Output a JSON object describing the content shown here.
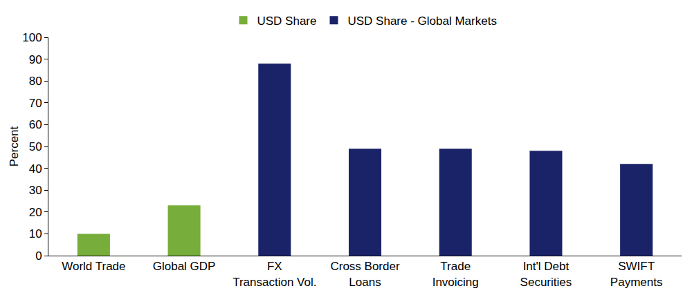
{
  "chart_data": {
    "type": "bar",
    "categories": [
      "World Trade",
      "Global GDP",
      "FX\nTransaction Vol.",
      "Cross Border\nLoans",
      "Trade\nInvoicing",
      "Int'l Debt\nSecurities",
      "SWIFT\nPayments"
    ],
    "series": [
      {
        "name": "USD Share",
        "color": "#77ad3a",
        "values": [
          10,
          23,
          null,
          null,
          null,
          null,
          null
        ]
      },
      {
        "name": "USD Share - Global Markets",
        "color": "#1b2368",
        "values": [
          null,
          null,
          88,
          49,
          49,
          48,
          42
        ]
      }
    ],
    "y_label": "Percent",
    "ylim": [
      0,
      100
    ],
    "yticks": [
      0,
      10,
      20,
      30,
      40,
      50,
      60,
      70,
      80,
      90,
      100
    ],
    "grid": false,
    "legend": "top"
  }
}
